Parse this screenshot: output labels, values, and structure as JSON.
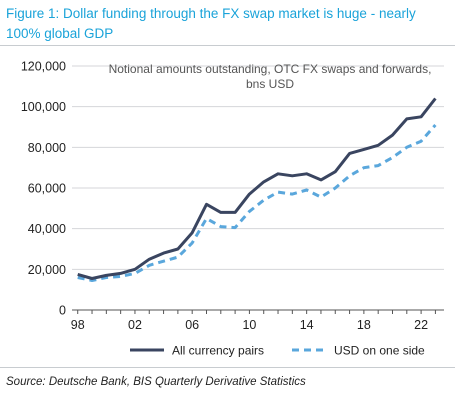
{
  "figure": {
    "title": "Figure 1: Dollar funding through the FX swap market is huge - nearly 100% global GDP",
    "source": "Source: Deutsche Bank, BIS Quarterly Derivative Statistics"
  },
  "chart_data": {
    "type": "line",
    "title": "",
    "annotation_lines": [
      "Notional amounts outstanding, OTC FX swaps and forwards,",
      "bns USD"
    ],
    "x": [
      1998,
      1999,
      2000,
      2001,
      2002,
      2003,
      2004,
      2005,
      2006,
      2007,
      2008,
      2009,
      2010,
      2011,
      2012,
      2013,
      2014,
      2015,
      2016,
      2017,
      2018,
      2019,
      2020,
      2021,
      2022,
      2023
    ],
    "x_tick_values": [
      1998,
      2002,
      2006,
      2010,
      2014,
      2018,
      2022
    ],
    "x_tick_labels": [
      "98",
      "02",
      "06",
      "10",
      "14",
      "18",
      "22"
    ],
    "xlim": [
      1997.6,
      2023.6
    ],
    "ylim": [
      0,
      120000
    ],
    "y_tick_values": [
      0,
      20000,
      40000,
      60000,
      80000,
      100000,
      120000
    ],
    "y_tick_labels": [
      "0",
      "20,000",
      "40,000",
      "60,000",
      "80,000",
      "100,000",
      "120,000"
    ],
    "grid": "horizontal",
    "legend_position": "bottom",
    "series": [
      {
        "name": "All currency pairs",
        "color": "#3a4560",
        "style": "solid",
        "values": [
          17500,
          15500,
          17000,
          18000,
          20000,
          25000,
          28000,
          30000,
          38000,
          52000,
          48000,
          48000,
          57000,
          63000,
          67000,
          66000,
          67000,
          64000,
          68000,
          77000,
          79000,
          81000,
          86000,
          94000,
          95000,
          104000
        ]
      },
      {
        "name": "USD on one side",
        "color": "#5aa7dc",
        "style": "dashed",
        "values": [
          16000,
          14500,
          16000,
          16500,
          18000,
          22000,
          24000,
          26000,
          33000,
          45000,
          41000,
          40500,
          48500,
          54000,
          58000,
          57000,
          59000,
          55500,
          60000,
          66000,
          70000,
          71000,
          75000,
          80000,
          83000,
          91000
        ]
      }
    ]
  }
}
